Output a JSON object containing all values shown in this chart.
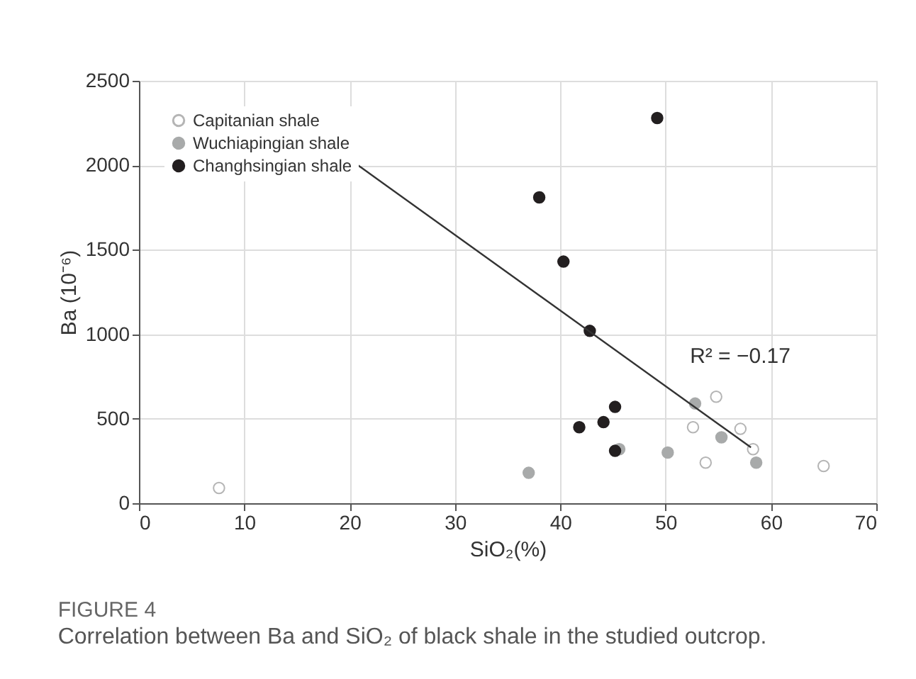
{
  "chart_data": {
    "type": "scatter",
    "title": "FIGURE 4",
    "subtitle": "Correlation between Ba and SiO₂ of black shale in the studied outcrop.",
    "xlabel": "SiO₂(%)",
    "ylabel": "Ba (10⁻⁶)",
    "series": [
      {
        "name": "Capitanian shale",
        "color": "#ffffff",
        "x": [
          7.6,
          54.8,
          52.6,
          57.1,
          58.3,
          53.8,
          65.0
        ],
        "values": [
          90,
          630,
          450,
          440,
          320,
          240,
          220
        ]
      },
      {
        "name": "Wuchiapingian shale",
        "color": "#a8aaaa",
        "x": [
          37.0,
          52.8,
          55.3,
          50.2,
          58.6,
          45.6
        ],
        "values": [
          180,
          590,
          390,
          300,
          240,
          320
        ]
      },
      {
        "name": "Changhsingian shale",
        "color": "#231f20",
        "x": [
          49.2,
          38.0,
          40.3,
          42.8,
          45.2,
          44.1,
          41.8,
          45.2
        ],
        "values": [
          2280,
          1810,
          1430,
          1020,
          570,
          480,
          450,
          310
        ]
      },
      {
        "type": "line",
        "marker": "none",
        "color": "#333333",
        "x": [
          20.8,
          58.1
        ],
        "values": [
          2000,
          330
        ]
      }
    ],
    "annotations": [
      "R² = −0.17"
    ],
    "xlim": [
      0,
      70
    ],
    "xticks": [
      0,
      10,
      20,
      30,
      40,
      50,
      60,
      70
    ],
    "ylim": [
      0,
      2500
    ],
    "yticks": [
      0,
      500,
      1000,
      1500,
      2000,
      2500
    ],
    "grid": true,
    "legend": "top left",
    "marker": "circle"
  }
}
